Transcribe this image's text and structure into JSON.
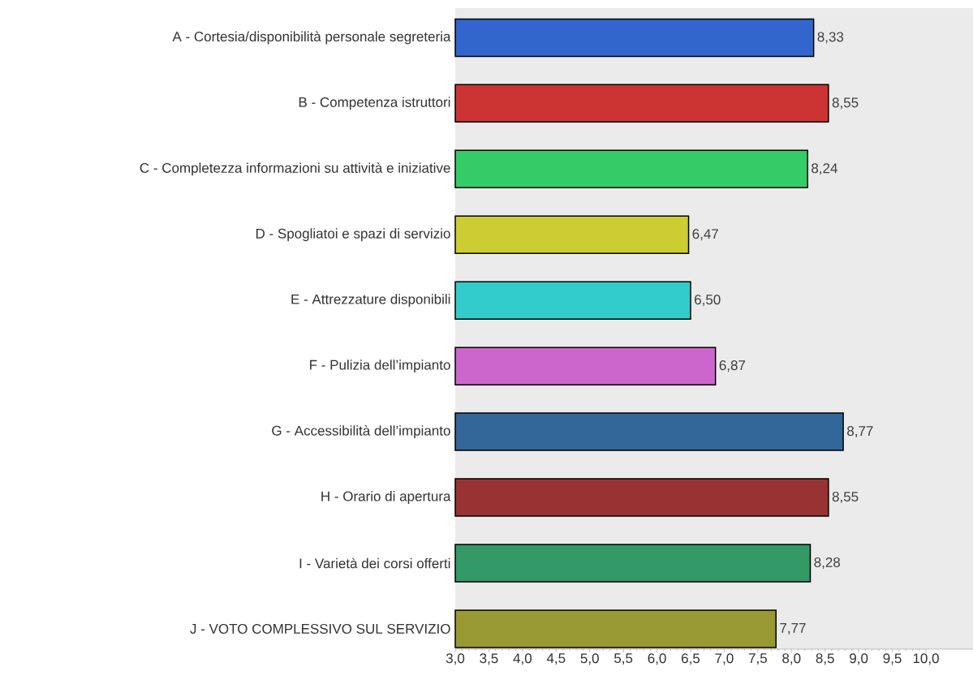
{
  "chart_data": {
    "type": "bar",
    "orientation": "horizontal",
    "categories": [
      "A - Cortesia/disponibilità personale segreteria",
      "B - Competenza istruttori",
      "C - Completezza informazioni su attività e iniziative",
      "D - Spogliatoi e spazi di servizio",
      "E - Attrezzature disponibili",
      "F - Pulizia dell’impianto",
      "G - Accessibilità dell’impianto",
      "H - Orario di apertura",
      "I - Varietà dei corsi offerti",
      "J - VOTO COMPLESSIVO SUL SERVIZIO"
    ],
    "values": [
      8.33,
      8.55,
      8.24,
      6.47,
      6.5,
      6.87,
      8.77,
      8.55,
      8.28,
      7.77
    ],
    "colors": [
      "#3366cc",
      "#cc3333",
      "#33cc66",
      "#cccc33",
      "#33cccc",
      "#cc66cc",
      "#336699",
      "#993333",
      "#339966",
      "#999933"
    ],
    "xlim": [
      3,
      10.7
    ],
    "xticks": [
      {
        "value": 3,
        "label": "3,0"
      },
      {
        "value": 3.5,
        "label": "3,5"
      },
      {
        "value": 4,
        "label": "4,0"
      },
      {
        "value": 4.5,
        "label": "4,5"
      },
      {
        "value": 5,
        "label": "5,0"
      },
      {
        "value": 5.5,
        "label": "5,5"
      },
      {
        "value": 6,
        "label": "6,0"
      },
      {
        "value": 6.5,
        "label": "6,5"
      },
      {
        "value": 7,
        "label": "7,0"
      },
      {
        "value": 7.5,
        "label": "7,5"
      },
      {
        "value": 8,
        "label": "8,0"
      },
      {
        "value": 8.5,
        "label": "8,5"
      },
      {
        "value": 9,
        "label": "9,0"
      },
      {
        "value": 9.5,
        "label": "9,5"
      },
      {
        "value": 10,
        "label": "10,0"
      }
    ],
    "value_labels": [
      "8,33",
      "8,55",
      "8,24",
      "6,47",
      "6,50",
      "6,87",
      "8,77",
      "8,55",
      "8,28",
      "7,77"
    ],
    "grid": false
  }
}
